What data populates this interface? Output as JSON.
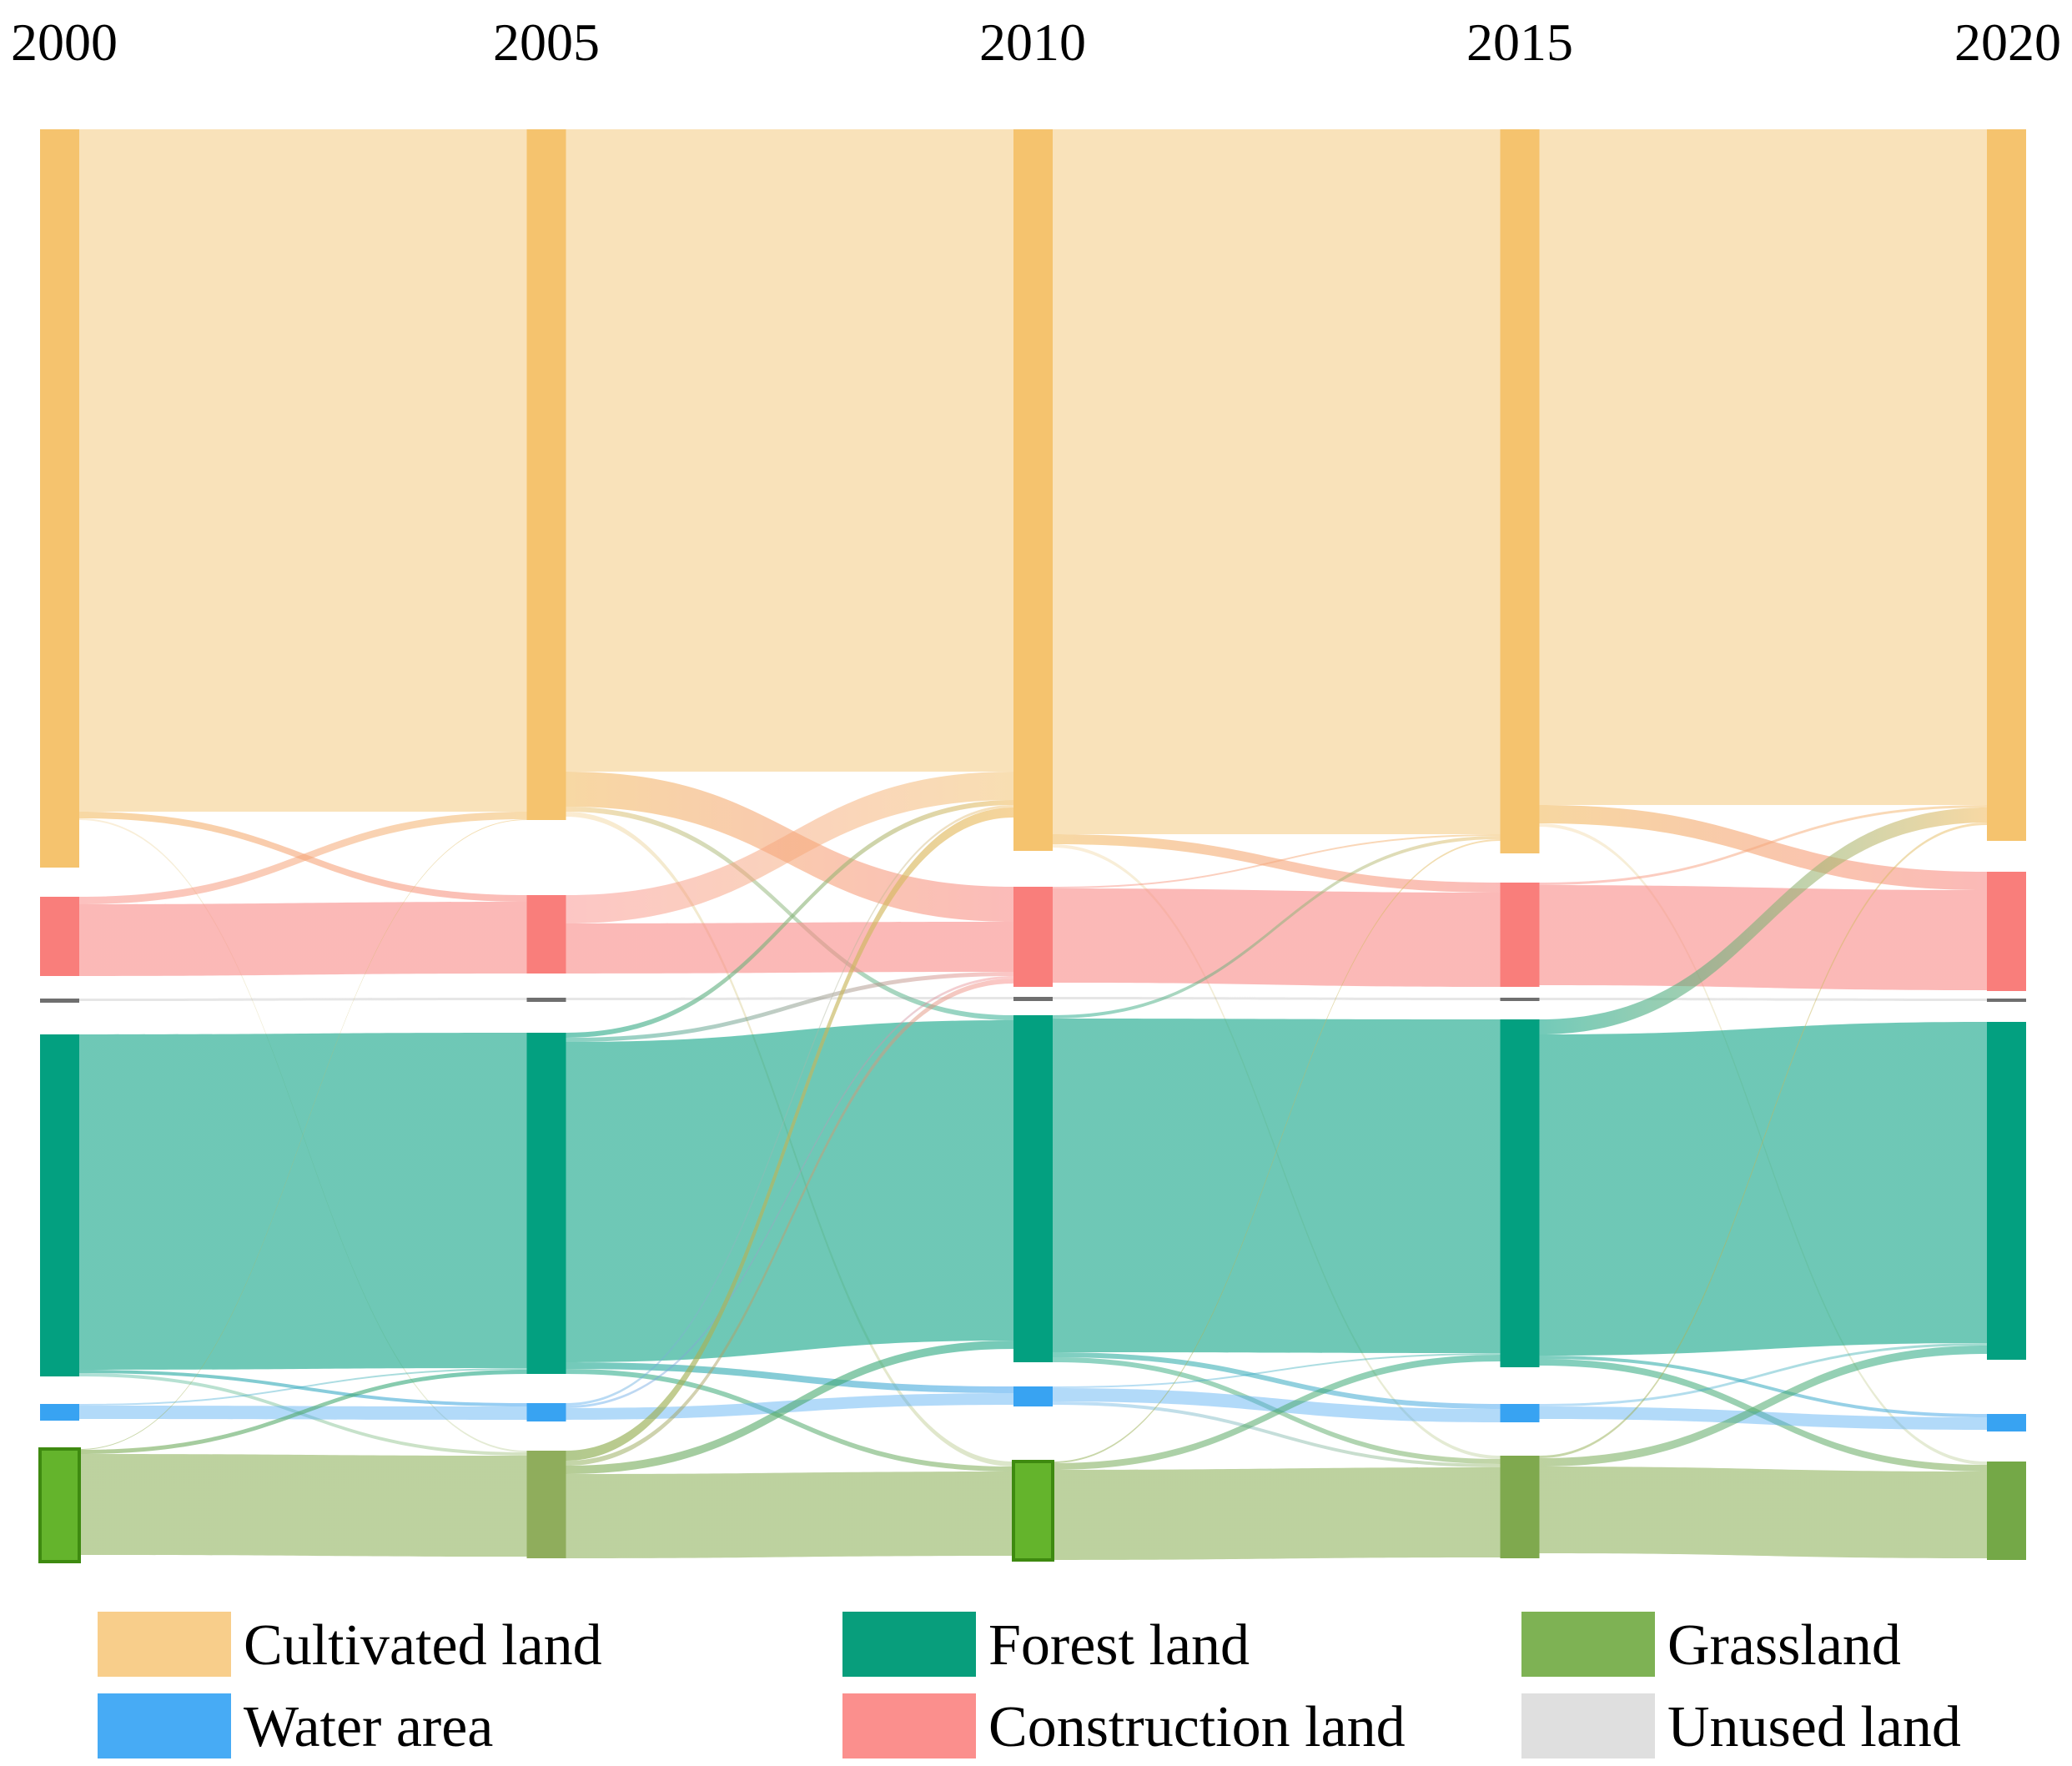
{
  "figure": {
    "description": "Sankey diagram of land use transfers across five years",
    "background_color": "#ffffff"
  },
  "years": [
    "2000",
    "2005",
    "2010",
    "2015",
    "2020"
  ],
  "categories": [
    {
      "id": "cultivated",
      "label": "Cultivated land",
      "node_color": "#F5C36E",
      "flow_color": "#F2BE66"
    },
    {
      "id": "construction",
      "label": "Construction land",
      "node_color": "#F97E7B",
      "flow_color": "#F98E8B"
    },
    {
      "id": "unused",
      "label": "Unused land",
      "node_color": "#6F6F6F",
      "flow_color": "#9A9A9A"
    },
    {
      "id": "forest",
      "label": "Forest land",
      "node_color": "#03A080",
      "flow_color": "#16A78A"
    },
    {
      "id": "water",
      "label": "Water area",
      "node_color": "#38A3F2",
      "flow_color": "#55ACF2"
    },
    {
      "id": "grassland",
      "label": "Grassland",
      "node_color": "#67B42E",
      "flow_color": "#87AC50"
    }
  ],
  "chart_data": {
    "type": "sankey",
    "title": "",
    "x_categories": [
      "2000",
      "2005",
      "2010",
      "2015",
      "2020"
    ],
    "node_order": [
      "cultivated",
      "construction",
      "unused",
      "forest",
      "water",
      "grassland"
    ],
    "units": "relative flow width (pixel-proportional, no numeric labels shown in figure)",
    "nodes": {
      "cultivated": {
        "label": "Cultivated land",
        "y": [
          155,
          155,
          155,
          155,
          155
        ],
        "h": [
          885,
          828,
          865,
          868,
          853
        ]
      },
      "construction": {
        "label": "Construction land",
        "y": [
          1075,
          1073,
          1063,
          1058,
          1045
        ],
        "h": [
          95,
          94,
          120,
          125,
          143
        ]
      },
      "unused": {
        "label": "Unused land",
        "y": [
          1197,
          1196,
          1195,
          1196,
          1197
        ],
        "h": [
          5,
          5,
          5,
          4,
          4
        ]
      },
      "forest": {
        "label": "Forest land",
        "y": [
          1240,
          1238,
          1217,
          1222,
          1225
        ],
        "h": [
          410,
          409,
          416,
          417,
          405
        ]
      },
      "water": {
        "label": "Water area",
        "y": [
          1683,
          1682,
          1662,
          1683,
          1695
        ],
        "h": [
          20,
          22,
          24,
          22,
          21
        ]
      },
      "grassland": {
        "label": "Grassland",
        "y": [
          1737,
          1739,
          1752,
          1745,
          1752
        ],
        "h": [
          135,
          129,
          118,
          123,
          118
        ],
        "fills": [
          "#64B42C",
          "#8FAD5C",
          "#64B42C",
          "#7FA94E",
          "#74A847"
        ],
        "stroke": "#3E8A10",
        "stroke_years": [
          0,
          2
        ]
      }
    },
    "links": [
      {
        "period": "2000-2005",
        "flows": [
          [
            "cultivated",
            "cultivated",
            818,
            0.45
          ],
          [
            "cultivated",
            "construction",
            8,
            0.6
          ],
          [
            "cultivated",
            "grassland",
            2,
            0.25
          ],
          [
            "construction",
            "cultivated",
            9,
            0.55
          ],
          [
            "construction",
            "construction",
            86,
            0.62
          ],
          [
            "unused",
            "unused",
            3,
            0.25
          ],
          [
            "forest",
            "forest",
            402,
            0.62
          ],
          [
            "forest",
            "water",
            4,
            0.6
          ],
          [
            "forest",
            "grassland",
            4,
            0.35
          ],
          [
            "water",
            "forest",
            2,
            0.4
          ],
          [
            "water",
            "water",
            16,
            0.45
          ],
          [
            "grassland",
            "cultivated",
            1,
            0.5
          ],
          [
            "grassland",
            "forest",
            5,
            0.6
          ],
          [
            "grassland",
            "grassland",
            121,
            0.55
          ]
        ]
      },
      {
        "period": "2005-2010",
        "flows": [
          [
            "cultivated",
            "cultivated",
            770,
            0.45
          ],
          [
            "cultivated",
            "construction",
            42,
            0.6
          ],
          [
            "cultivated",
            "forest",
            6,
            0.5
          ],
          [
            "cultivated",
            "grassland",
            6,
            0.3
          ],
          [
            "construction",
            "cultivated",
            34,
            0.5
          ],
          [
            "construction",
            "construction",
            60,
            0.62
          ],
          [
            "unused",
            "unused",
            3,
            0.25
          ],
          [
            "forest",
            "cultivated",
            6,
            0.6
          ],
          [
            "forest",
            "construction",
            5,
            0.5
          ],
          [
            "forest",
            "forest",
            384,
            0.62
          ],
          [
            "forest",
            "water",
            8,
            0.6
          ],
          [
            "forest",
            "grassland",
            6,
            0.55
          ],
          [
            "water",
            "cultivated",
            3,
            0.45
          ],
          [
            "water",
            "construction",
            3,
            0.45
          ],
          [
            "water",
            "water",
            14,
            0.45
          ],
          [
            "grassland",
            "cultivated",
            12,
            0.65
          ],
          [
            "grassland",
            "construction",
            6,
            0.5
          ],
          [
            "grassland",
            "forest",
            10,
            0.6
          ],
          [
            "grassland",
            "grassland",
            101,
            0.55
          ]
        ]
      },
      {
        "period": "2010-2015",
        "flows": [
          [
            "cultivated",
            "cultivated",
            845,
            0.45
          ],
          [
            "cultivated",
            "construction",
            12,
            0.6
          ],
          [
            "cultivated",
            "grassland",
            4,
            0.25
          ],
          [
            "construction",
            "cultivated",
            2,
            0.5
          ],
          [
            "construction",
            "construction",
            113,
            0.62
          ],
          [
            "unused",
            "unused",
            3,
            0.25
          ],
          [
            "forest",
            "cultivated",
            4,
            0.5
          ],
          [
            "forest",
            "forest",
            400,
            0.62
          ],
          [
            "forest",
            "water",
            6,
            0.55
          ],
          [
            "forest",
            "grassland",
            6,
            0.5
          ],
          [
            "water",
            "forest",
            2,
            0.4
          ],
          [
            "water",
            "water",
            16,
            0.45
          ],
          [
            "water",
            "grassland",
            4,
            0.4
          ],
          [
            "grassland",
            "cultivated",
            2,
            0.5
          ],
          [
            "grassland",
            "forest",
            8,
            0.55
          ],
          [
            "grassland",
            "grassland",
            108,
            0.55
          ]
        ]
      },
      {
        "period": "2015-2020",
        "flows": [
          [
            "cultivated",
            "cultivated",
            810,
            0.45
          ],
          [
            "cultivated",
            "construction",
            22,
            0.62
          ],
          [
            "cultivated",
            "grassland",
            4,
            0.25
          ],
          [
            "construction",
            "cultivated",
            3,
            0.5
          ],
          [
            "construction",
            "construction",
            120,
            0.62
          ],
          [
            "unused",
            "unused",
            3,
            0.25
          ],
          [
            "forest",
            "cultivated",
            18,
            0.6
          ],
          [
            "forest",
            "forest",
            385,
            0.62
          ],
          [
            "forest",
            "water",
            4,
            0.55
          ],
          [
            "forest",
            "grassland",
            8,
            0.55
          ],
          [
            "water",
            "forest",
            3,
            0.4
          ],
          [
            "water",
            "water",
            15,
            0.45
          ],
          [
            "grassland",
            "cultivated",
            3,
            0.5
          ],
          [
            "grassland",
            "forest",
            10,
            0.55
          ],
          [
            "grassland",
            "grassland",
            104,
            0.55
          ]
        ]
      }
    ],
    "legend_position": "bottom",
    "grid": false
  },
  "legend": {
    "items": [
      {
        "label": "Cultivated land",
        "color": "#F8CE8B",
        "col": 0,
        "row": 0
      },
      {
        "label": "Water area",
        "color": "#47ABF5",
        "col": 0,
        "row": 1
      },
      {
        "label": "Forest land",
        "color": "#089E7C",
        "col": 1,
        "row": 0
      },
      {
        "label": "Construction land",
        "color": "#FB8F8D",
        "col": 1,
        "row": 1
      },
      {
        "label": "Grassland",
        "color": "#7EB254",
        "col": 2,
        "row": 0
      },
      {
        "label": "Unused land",
        "color": "#DFDFDF",
        "col": 2,
        "row": 1
      }
    ]
  }
}
